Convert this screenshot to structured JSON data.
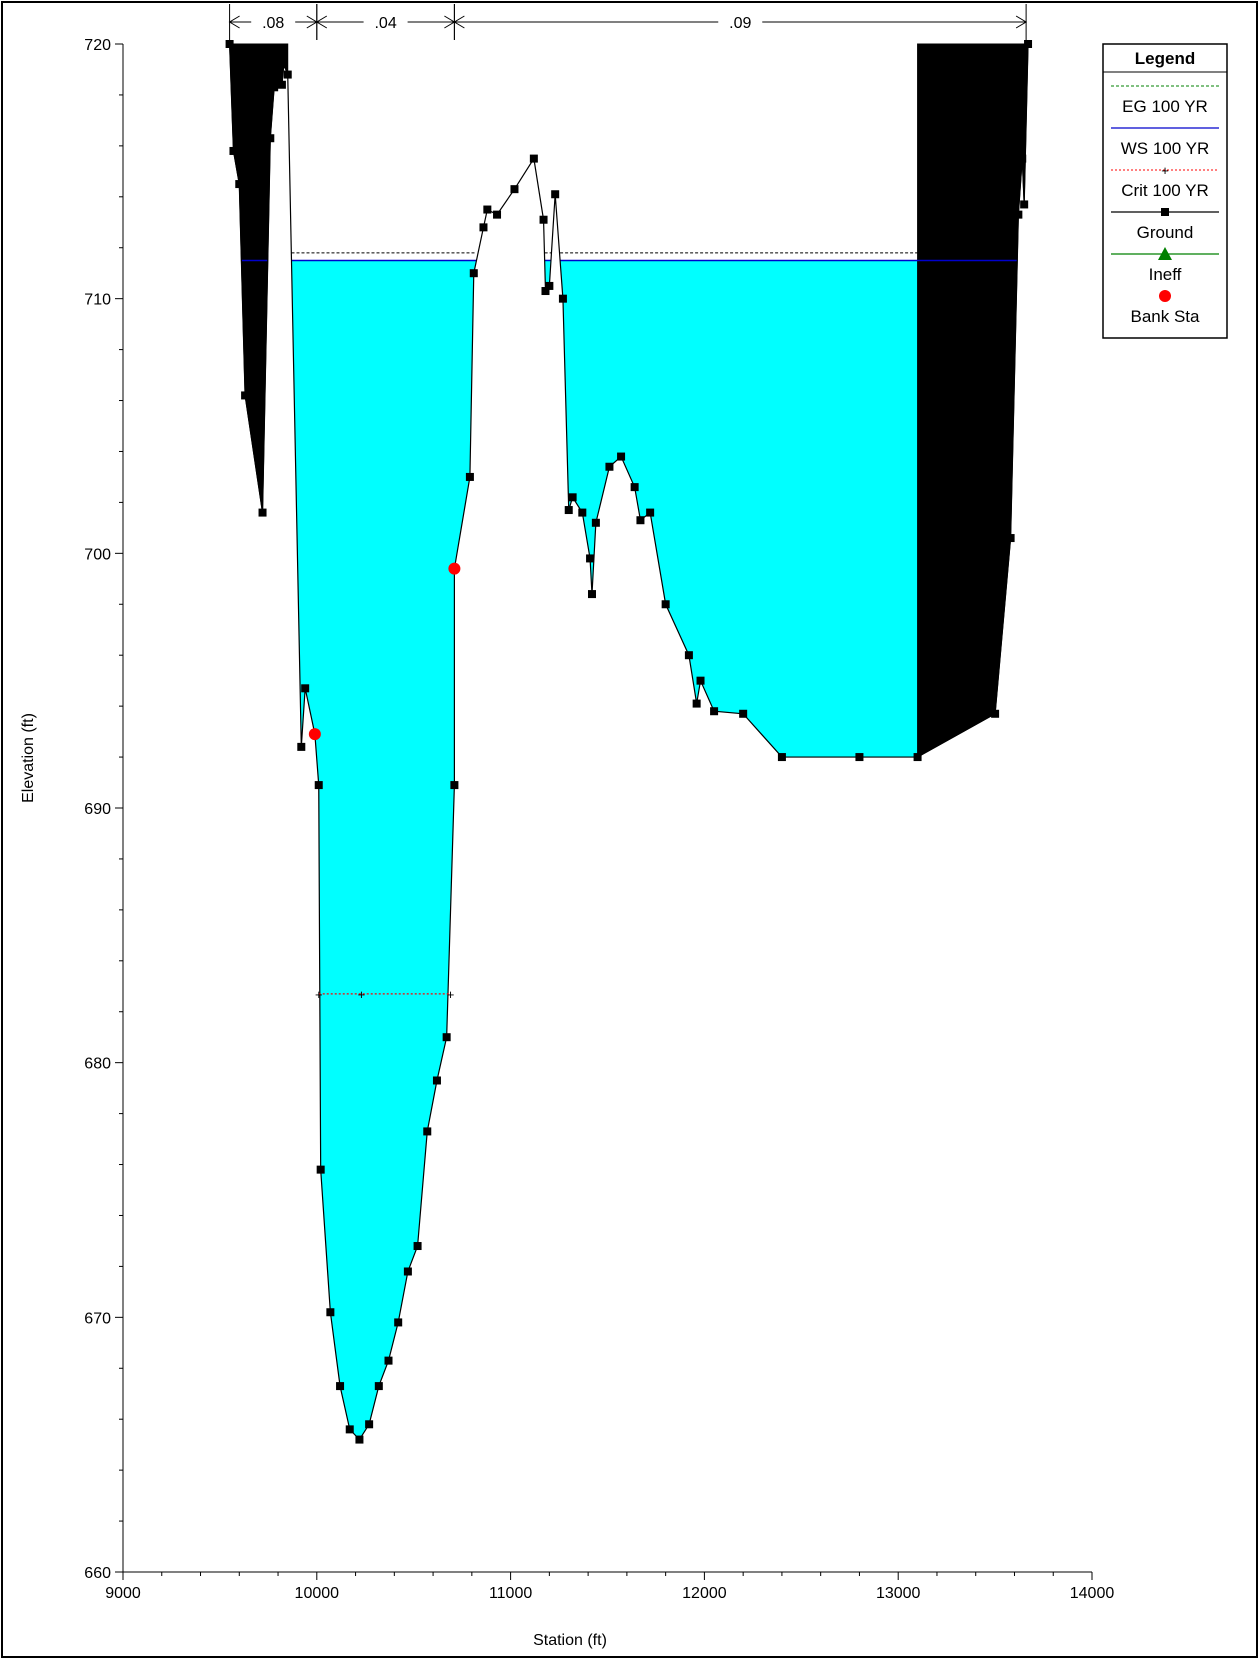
{
  "chart_data": {
    "type": "area",
    "xlabel": "Station (ft)",
    "ylabel": "Elevation (ft)",
    "xlim": [
      9000,
      14000
    ],
    "ylim": [
      660,
      720
    ],
    "x_ticks": [
      9000,
      10000,
      11000,
      12000,
      13000,
      14000
    ],
    "y_ticks": [
      660,
      670,
      680,
      690,
      700,
      710,
      720
    ],
    "manning_n": [
      {
        "label": ".08",
        "from": 9550,
        "to": 10000
      },
      {
        "label": ".04",
        "from": 10000,
        "to": 10710
      },
      {
        "label": ".09",
        "from": 10710,
        "to": 13660
      }
    ],
    "legend": {
      "title": "Legend",
      "position": "top-right",
      "items": [
        {
          "label": "EG 100 YR",
          "color": "#008000",
          "style": "dashed"
        },
        {
          "label": "WS 100 YR",
          "color": "#0000cc",
          "style": "solid"
        },
        {
          "label": "Crit 100 YR",
          "color": "#ff0000",
          "style": "dotted-plus"
        },
        {
          "label": "Ground",
          "color": "#000000",
          "style": "solid-square"
        },
        {
          "label": "Ineff",
          "color": "#008000",
          "style": "solid-triangle"
        },
        {
          "label": "Bank Sta",
          "color": "#ff0000",
          "style": "circle"
        }
      ]
    },
    "series": [
      {
        "name": "Ground",
        "points": [
          [
            9550,
            720
          ],
          [
            9570,
            715.8
          ],
          [
            9600,
            714.5
          ],
          [
            9630,
            706.2
          ],
          [
            9720,
            701.6
          ],
          [
            9760,
            716.3
          ],
          [
            9780,
            718.3
          ],
          [
            9820,
            718.4
          ],
          [
            9830,
            719.2
          ],
          [
            9850,
            718.8
          ],
          [
            9920,
            692.4
          ],
          [
            9940,
            694.7
          ],
          [
            9990,
            692.9
          ],
          [
            10010,
            690.9
          ],
          [
            10020,
            675.8
          ],
          [
            10070,
            670.2
          ],
          [
            10120,
            667.3
          ],
          [
            10170,
            665.6
          ],
          [
            10220,
            665.2
          ],
          [
            10270,
            665.8
          ],
          [
            10320,
            667.3
          ],
          [
            10370,
            668.3
          ],
          [
            10420,
            669.8
          ],
          [
            10470,
            671.8
          ],
          [
            10520,
            672.8
          ],
          [
            10570,
            677.3
          ],
          [
            10620,
            679.3
          ],
          [
            10670,
            681
          ],
          [
            10710,
            690.9
          ],
          [
            10710,
            699.4
          ],
          [
            10790,
            703
          ],
          [
            10810,
            711
          ],
          [
            10860,
            712.8
          ],
          [
            10880,
            713.5
          ],
          [
            10930,
            713.3
          ],
          [
            11020,
            714.3
          ],
          [
            11120,
            715.5
          ],
          [
            11170,
            713.1
          ],
          [
            11180,
            710.3
          ],
          [
            11200,
            710.5
          ],
          [
            11230,
            714.1
          ],
          [
            11270,
            710
          ],
          [
            11300,
            701.7
          ],
          [
            11320,
            702.2
          ],
          [
            11370,
            701.6
          ],
          [
            11410,
            699.8
          ],
          [
            11420,
            698.4
          ],
          [
            11440,
            701.2
          ],
          [
            11510,
            703.4
          ],
          [
            11570,
            703.8
          ],
          [
            11640,
            702.6
          ],
          [
            11670,
            701.3
          ],
          [
            11720,
            701.6
          ],
          [
            11800,
            698
          ],
          [
            11920,
            696
          ],
          [
            11960,
            694.1
          ],
          [
            11980,
            695
          ],
          [
            12050,
            693.8
          ],
          [
            12200,
            693.7
          ],
          [
            12400,
            692
          ],
          [
            12800,
            692
          ],
          [
            13100,
            692
          ],
          [
            13500,
            693.7
          ],
          [
            13580,
            700.6
          ],
          [
            13620,
            713.3
          ],
          [
            13640,
            715.5
          ],
          [
            13650,
            713.7
          ],
          [
            13670,
            720
          ]
        ]
      },
      {
        "name": "WS 100 YR",
        "elevation": 711.5
      },
      {
        "name": "EG 100 YR",
        "elevation": 711.8
      },
      {
        "name": "Crit 100 YR",
        "elevation": 682.7,
        "from": 10010,
        "to": 10690,
        "markers": [
          10010,
          10230,
          10690
        ]
      },
      {
        "name": "Bank Sta",
        "points": [
          [
            9990,
            692.9
          ],
          [
            10710,
            699.4
          ]
        ]
      }
    ],
    "ineffective_blocks": [
      {
        "from": 9550,
        "to": 9850,
        "top": 720
      },
      {
        "from": 13100,
        "to": 13670,
        "top": 720
      }
    ],
    "water_fill_color": "#00ffff"
  }
}
